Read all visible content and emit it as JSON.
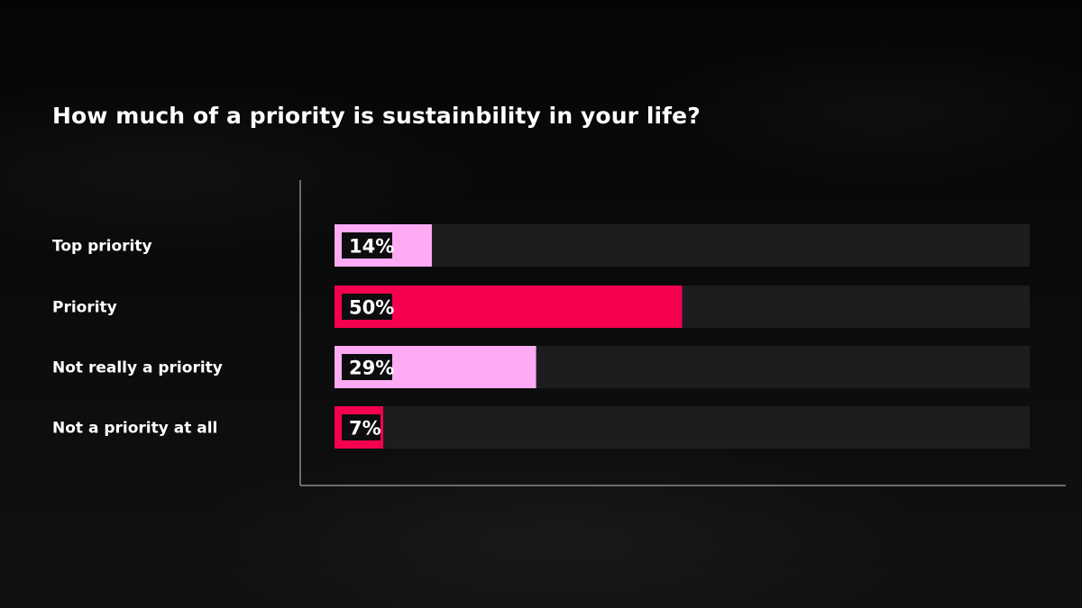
{
  "title": "How much of a priority is sustainbility in your life?",
  "colors": {
    "background": "#0b0b0c",
    "track": "#1d1d1f",
    "label_box": "#0d0d0f",
    "axis": "#8a8a8a",
    "light_pink": "#ffaaf4",
    "hot_pink": "#f5004f"
  },
  "chart_data": {
    "type": "bar",
    "orientation": "horizontal",
    "categories": [
      "Top priority",
      "Priority",
      "Not really a priority",
      "Not a priority at all"
    ],
    "values": [
      14,
      50,
      29,
      7
    ],
    "value_labels": [
      "14%",
      "50%",
      "29%",
      "7%"
    ],
    "bar_colors": [
      "#ffaaf4",
      "#f5004f",
      "#ffaaf4",
      "#f5004f"
    ],
    "xlim": [
      0,
      100
    ],
    "unit": "%",
    "grid": false,
    "legend": "none"
  }
}
